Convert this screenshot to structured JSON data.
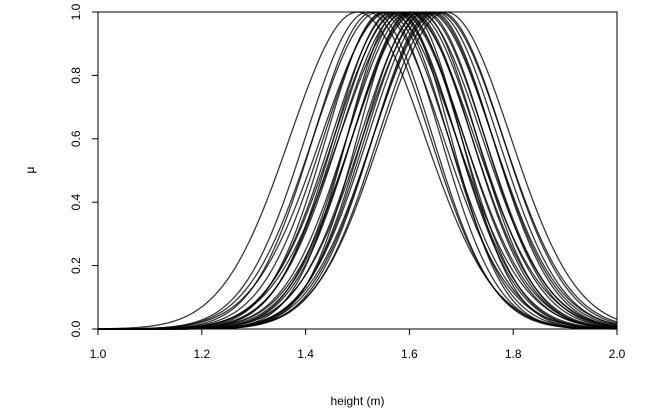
{
  "chart_data": {
    "type": "line",
    "title": "",
    "xlabel": "height (m)",
    "ylabel": "μ",
    "xlim": [
      1.0,
      2.0
    ],
    "ylim": [
      0.0,
      1.0
    ],
    "x_ticks": [
      "1.0",
      "1.2",
      "1.4",
      "1.6",
      "1.8",
      "2.0"
    ],
    "y_ticks": [
      "0.0",
      "0.2",
      "0.4",
      "0.6",
      "0.8",
      "1.0"
    ],
    "grid": false,
    "legend": "none",
    "line_color": "#000000",
    "series_form": "gaussian membership functions",
    "series": [
      {
        "mean": 1.5,
        "sd": 0.13
      },
      {
        "mean": 1.52,
        "sd": 0.12
      },
      {
        "mean": 1.53,
        "sd": 0.115
      },
      {
        "mean": 1.54,
        "sd": 0.125
      },
      {
        "mean": 1.55,
        "sd": 0.11
      },
      {
        "mean": 1.555,
        "sd": 0.12
      },
      {
        "mean": 1.56,
        "sd": 0.13
      },
      {
        "mean": 1.565,
        "sd": 0.11
      },
      {
        "mean": 1.57,
        "sd": 0.12
      },
      {
        "mean": 1.575,
        "sd": 0.115
      },
      {
        "mean": 1.58,
        "sd": 0.125
      },
      {
        "mean": 1.585,
        "sd": 0.12
      },
      {
        "mean": 1.59,
        "sd": 0.11
      },
      {
        "mean": 1.595,
        "sd": 0.13
      },
      {
        "mean": 1.6,
        "sd": 0.12
      },
      {
        "mean": 1.605,
        "sd": 0.115
      },
      {
        "mean": 1.61,
        "sd": 0.12
      },
      {
        "mean": 1.615,
        "sd": 0.125
      },
      {
        "mean": 1.62,
        "sd": 0.11
      },
      {
        "mean": 1.625,
        "sd": 0.12
      },
      {
        "mean": 1.63,
        "sd": 0.115
      },
      {
        "mean": 1.635,
        "sd": 0.125
      },
      {
        "mean": 1.64,
        "sd": 0.12
      },
      {
        "mean": 1.645,
        "sd": 0.115
      },
      {
        "mean": 1.65,
        "sd": 0.12
      },
      {
        "mean": 1.655,
        "sd": 0.125
      },
      {
        "mean": 1.66,
        "sd": 0.12
      },
      {
        "mean": 1.67,
        "sd": 0.125
      },
      {
        "mean": 1.58,
        "sd": 0.1
      },
      {
        "mean": 1.6,
        "sd": 0.1
      }
    ]
  }
}
